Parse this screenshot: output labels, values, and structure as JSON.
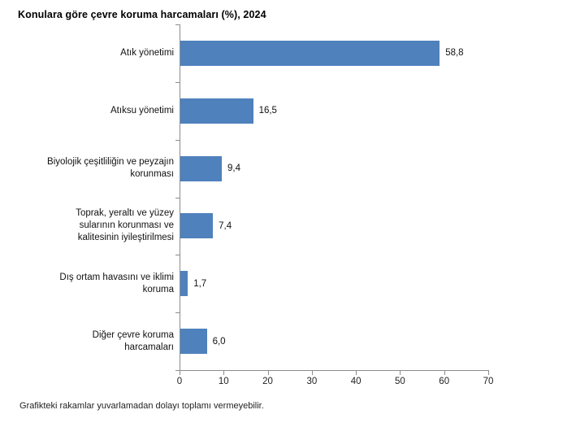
{
  "chart_data": {
    "type": "bar",
    "orientation": "horizontal",
    "title": "Konulara göre çevre koruma harcamaları (%), 2024",
    "categories": [
      "Atık yönetimi",
      "Atıksu yönetimi",
      "Biyolojik çeşitliliğin ve peyzajın\nkorunması",
      "Toprak, yeraltı ve yüzey\nsularının korunması ve\nkalitesinin iyileştirilmesi",
      "Dış ortam havasını ve iklimi\nkoruma",
      "Diğer çevre koruma\nharcamaları"
    ],
    "values": [
      58.8,
      16.5,
      9.4,
      7.4,
      1.7,
      6.0
    ],
    "value_labels": [
      "58,8",
      "16,5",
      "9,4",
      "7,4",
      "1,7",
      "6,0"
    ],
    "xlabel": "",
    "ylabel": "",
    "xlim": [
      0,
      70
    ],
    "x_ticks": [
      0,
      10,
      20,
      30,
      40,
      50,
      60,
      70
    ],
    "grid": false,
    "legend": false,
    "colors": {
      "bar": "#4f81bd",
      "axis": "#8c8c8c",
      "text": "#000000"
    },
    "footnote": "Grafikteki rakamlar yuvarlamadan dolayı toplamı vermeyebilir."
  }
}
